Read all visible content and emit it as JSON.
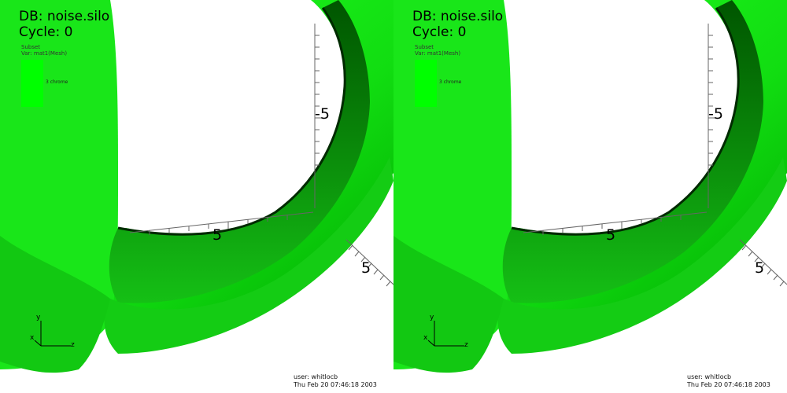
{
  "viewports": [
    {
      "db_label": "DB: noise.silo",
      "cycle_label": "Cycle: 0",
      "legend": {
        "title": "Subset",
        "var": "Var: mat1(Mesh)",
        "item": "3 chrome",
        "swatch_color": "#00ff00"
      },
      "axis_ticks": {
        "y": "-5",
        "x": "5",
        "z": "5"
      },
      "triad": {
        "y": "y",
        "x": "x",
        "z": "z"
      },
      "user": "user: whitlocb",
      "date": "Thu Feb 20 07:46:18 2003"
    },
    {
      "db_label": "DB: noise.silo",
      "cycle_label": "Cycle: 0",
      "legend": {
        "title": "Subset",
        "var": "Var: mat1(Mesh)",
        "item": "3 chrome",
        "swatch_color": "#00ff00"
      },
      "axis_ticks": {
        "y": "-5",
        "x": "5",
        "z": "5"
      },
      "triad": {
        "y": "y",
        "x": "x",
        "z": "z"
      },
      "user": "user: whitlocb",
      "date": "Thu Feb 20 07:46:18 2003"
    }
  ],
  "colors": {
    "surface": "#00ff00",
    "surface_dark": "#006400",
    "background": "#ffffff",
    "axes": "#555555"
  }
}
